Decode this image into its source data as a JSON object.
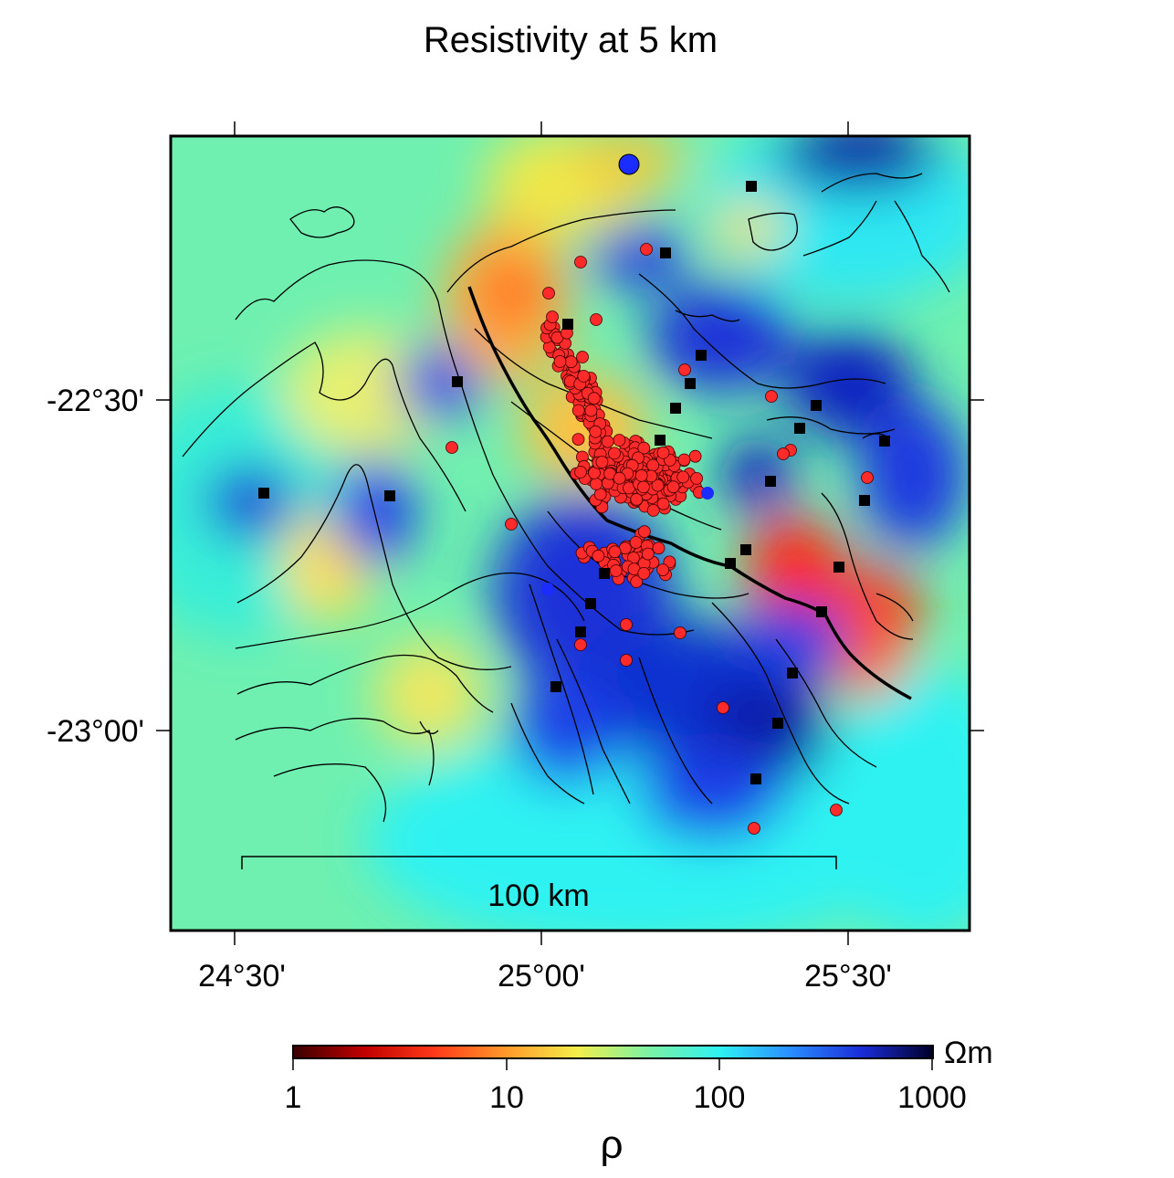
{
  "title": "Resistivity at 5 km",
  "axes": {
    "x_ticks": [
      "24°30'",
      "25°00'",
      "25°30'"
    ],
    "y_ticks": [
      "-22°30'",
      "-23°00'"
    ]
  },
  "scale_bar": {
    "label": "100 km",
    "length_km": 100
  },
  "colorbar": {
    "unit": "Ωm",
    "ticks": [
      "1",
      "10",
      "100",
      "1000"
    ],
    "symbol": "ρ",
    "scale": "log",
    "range": [
      1,
      1000
    ],
    "colors": [
      "#3a0000",
      "#c00000",
      "#ff3a1a",
      "#ff9a2a",
      "#f2ee4a",
      "#7cf2a4",
      "#2ef2f2",
      "#2a8cff",
      "#1a2cd8",
      "#000028"
    ]
  },
  "legend_symbols": {
    "earthquake": {
      "shape": "red circle",
      "color": "#ff2a2a"
    },
    "station": {
      "shape": "black square",
      "color": "#000000"
    },
    "special_event": {
      "shape": "blue circle",
      "color": "#1a2cff"
    },
    "fault": {
      "shape": "thick black line",
      "color": "#000000"
    }
  },
  "colors": {
    "background_field": "#6ff0b0",
    "conductor": "#ff2a10",
    "resistor": "#1a30d8"
  }
}
